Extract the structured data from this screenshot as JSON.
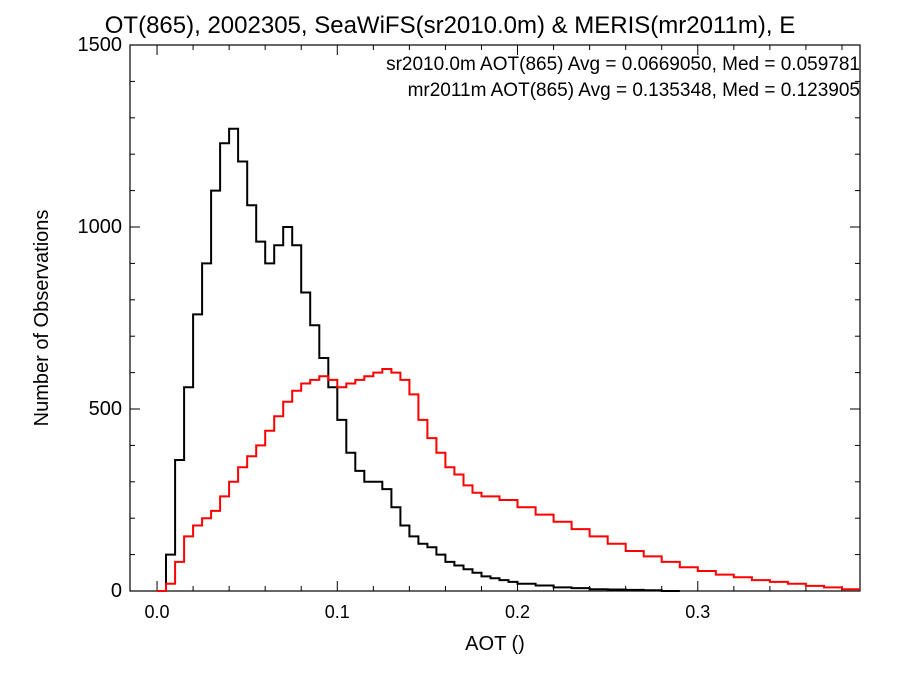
{
  "chart_data": {
    "type": "line",
    "title": "OT(865), 2002305, SeaWiFS(sr2010.0m) & MERIS(mr2011m), E",
    "xlabel": "AOT ()",
    "ylabel": "Number of Observations",
    "xlim": [
      -0.015,
      0.39
    ],
    "ylim": [
      0,
      1500
    ],
    "xticks": [
      {
        "value": 0.0,
        "label": "0.0"
      },
      {
        "value": 0.1,
        "label": "0.1"
      },
      {
        "value": 0.2,
        "label": "0.2"
      },
      {
        "value": 0.3,
        "label": "0.3"
      }
    ],
    "yticks": [
      {
        "value": 0,
        "label": "0"
      },
      {
        "value": 500,
        "label": "500"
      },
      {
        "value": 1000,
        "label": "1000"
      },
      {
        "value": 1500,
        "label": "1500"
      }
    ],
    "legend_position": "top-right",
    "series": [
      {
        "name": "sr2010.0m AOT(865) Avg = 0.0669050, Med = 0.059781",
        "color": "#000000",
        "step": "histogram",
        "x": [
          0.0,
          0.005,
          0.01,
          0.015,
          0.02,
          0.025,
          0.03,
          0.035,
          0.04,
          0.045,
          0.05,
          0.055,
          0.06,
          0.065,
          0.07,
          0.075,
          0.08,
          0.085,
          0.09,
          0.095,
          0.1,
          0.105,
          0.11,
          0.115,
          0.12,
          0.125,
          0.13,
          0.135,
          0.14,
          0.145,
          0.15,
          0.155,
          0.16,
          0.165,
          0.17,
          0.175,
          0.18,
          0.185,
          0.19,
          0.195,
          0.2,
          0.21,
          0.22,
          0.23,
          0.24,
          0.25,
          0.26,
          0.27,
          0.28
        ],
        "values": [
          0,
          100,
          360,
          560,
          760,
          900,
          1100,
          1230,
          1270,
          1180,
          1060,
          960,
          900,
          950,
          1000,
          950,
          820,
          730,
          640,
          560,
          470,
          380,
          330,
          300,
          300,
          280,
          230,
          180,
          150,
          130,
          120,
          100,
          80,
          70,
          60,
          50,
          40,
          35,
          30,
          25,
          20,
          15,
          10,
          8,
          5,
          4,
          3,
          2,
          0
        ]
      },
      {
        "name": "mr2011m AOT(865) Avg = 0.135348, Med = 0.123905",
        "color": "#ff0000",
        "step": "histogram",
        "x": [
          0.0,
          0.005,
          0.01,
          0.015,
          0.02,
          0.025,
          0.03,
          0.035,
          0.04,
          0.045,
          0.05,
          0.055,
          0.06,
          0.065,
          0.07,
          0.075,
          0.08,
          0.085,
          0.09,
          0.095,
          0.1,
          0.105,
          0.11,
          0.115,
          0.12,
          0.125,
          0.13,
          0.135,
          0.14,
          0.145,
          0.15,
          0.155,
          0.16,
          0.165,
          0.17,
          0.175,
          0.18,
          0.19,
          0.2,
          0.21,
          0.22,
          0.23,
          0.24,
          0.25,
          0.26,
          0.27,
          0.28,
          0.29,
          0.3,
          0.31,
          0.32,
          0.33,
          0.34,
          0.35,
          0.36,
          0.37,
          0.38
        ],
        "values": [
          0,
          20,
          80,
          150,
          180,
          200,
          220,
          260,
          300,
          340,
          370,
          400,
          440,
          480,
          520,
          550,
          570,
          580,
          590,
          580,
          560,
          570,
          580,
          590,
          600,
          610,
          600,
          580,
          540,
          470,
          420,
          380,
          340,
          320,
          290,
          270,
          260,
          250,
          230,
          210,
          190,
          170,
          150,
          130,
          110,
          95,
          80,
          65,
          55,
          45,
          38,
          30,
          25,
          20,
          14,
          10,
          5
        ]
      }
    ]
  }
}
